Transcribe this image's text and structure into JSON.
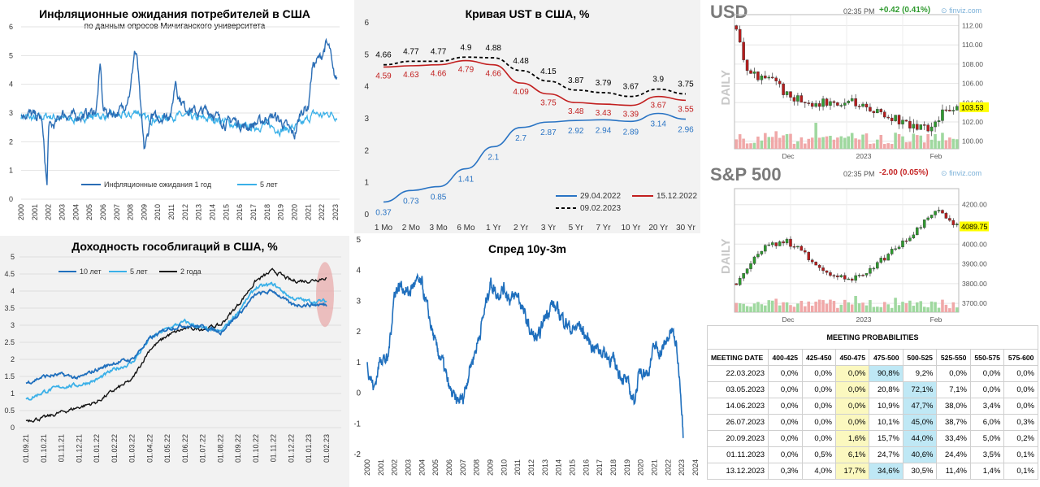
{
  "inflation": {
    "title": "Инфляционные ожидания потребителей в США",
    "subtitle": "по данным опросов Мичиганского университета",
    "y_ticks": [
      "0",
      "1",
      "2",
      "3",
      "4",
      "5",
      "6"
    ],
    "x_ticks": [
      "2000",
      "2001",
      "2002",
      "2003",
      "2004",
      "2005",
      "2006",
      "2007",
      "2008",
      "2009",
      "2010",
      "2011",
      "2012",
      "2013",
      "2014",
      "2015",
      "2016",
      "2017",
      "2018",
      "2019",
      "2020",
      "2021",
      "2022",
      "2023"
    ],
    "legend": [
      "Инфляционные ожидания 1 год",
      "5 лет"
    ],
    "colors": {
      "one_year": "#2a6db5",
      "five_year": "#3ab0e8"
    }
  },
  "ust": {
    "title": "Кривая UST в США, %",
    "y_ticks": [
      "0",
      "1",
      "2",
      "3",
      "4",
      "5",
      "6"
    ],
    "categories": [
      "1 Mo",
      "2 Mo",
      "3 Mo",
      "6 Mo",
      "1 Yr",
      "2 Yr",
      "3 Yr",
      "5 Yr",
      "7 Yr",
      "10 Yr",
      "20 Yr",
      "30 Yr"
    ],
    "legend": [
      "29.04.2022",
      "15.12.2022",
      "09.02.2023"
    ]
  },
  "bonds": {
    "title": "Доходность гособлигаций в США, %",
    "y_ticks": [
      "0",
      "0.5",
      "1",
      "1.5",
      "2",
      "2.5",
      "3",
      "3.5",
      "4",
      "4.5",
      "5"
    ],
    "x_ticks": [
      "01.09.21",
      "01.10.21",
      "01.11.21",
      "01.12.21",
      "01.01.22",
      "01.02.22",
      "01.03.22",
      "01.04.22",
      "01.05.22",
      "01.06.22",
      "01.07.22",
      "01.08.22",
      "01.09.22",
      "01.10.22",
      "01.11.22",
      "01.12.22",
      "01.01.23",
      "01.02.23"
    ],
    "legend": [
      "10 лет",
      "5 лет",
      "2 года"
    ]
  },
  "spread": {
    "title": "Спред 10y-3m",
    "y_ticks": [
      "-2",
      "-1",
      "0",
      "1",
      "2",
      "3",
      "4",
      "5"
    ],
    "x_ticks": [
      "2000",
      "2001",
      "2002",
      "2003",
      "2004",
      "2005",
      "2006",
      "2007",
      "2008",
      "2009",
      "2010",
      "2011",
      "2012",
      "2013",
      "2014",
      "2015",
      "2016",
      "2017",
      "2018",
      "2019",
      "2020",
      "2021",
      "2022",
      "2023",
      "2024"
    ]
  },
  "usd": {
    "ticker": "USD",
    "time": "02:35 PM",
    "change": "+0.42 (0.41%)",
    "source": "finviz.com",
    "period": "DAILY",
    "price_ticks": [
      "112.00",
      "110.00",
      "108.00",
      "106.00",
      "104.00",
      "102.00",
      "100.00"
    ],
    "last_price": "103.53",
    "x_labels": [
      "Dec",
      "2023",
      "Feb"
    ]
  },
  "sp500": {
    "ticker": "S&P 500",
    "time": "02:35 PM",
    "change": "-2.00 (0.05%)",
    "source": "finviz.com",
    "period": "DAILY",
    "price_ticks": [
      "4200.00",
      "4100.00",
      "4000.00",
      "3900.00",
      "3800.00",
      "3700.00"
    ],
    "last_price": "4089.75",
    "x_labels": [
      "Dec",
      "2023",
      "Feb"
    ]
  },
  "meeting": {
    "title": "MEETING PROBABILITIES",
    "headers": [
      "MEETING DATE",
      "400-425",
      "425-450",
      "450-475",
      "475-500",
      "500-525",
      "525-550",
      "550-575",
      "575-600"
    ],
    "rows": [
      [
        "22.03.2023",
        "0,0%",
        "0,0%",
        "0,0%",
        "90,8%",
        "9,2%",
        "0,0%",
        "0,0%",
        "0,0%"
      ],
      [
        "03.05.2023",
        "0,0%",
        "0,0%",
        "0,0%",
        "20,8%",
        "72,1%",
        "7,1%",
        "0,0%",
        "0,0%"
      ],
      [
        "14.06.2023",
        "0,0%",
        "0,0%",
        "0,0%",
        "10,9%",
        "47,7%",
        "38,0%",
        "3,4%",
        "0,0%"
      ],
      [
        "26.07.2023",
        "0,0%",
        "0,0%",
        "0,0%",
        "10,1%",
        "45,0%",
        "38,7%",
        "6,0%",
        "0,3%"
      ],
      [
        "20.09.2023",
        "0,0%",
        "0,0%",
        "1,6%",
        "15,7%",
        "44,0%",
        "33,4%",
        "5,0%",
        "0,2%"
      ],
      [
        "01.11.2023",
        "0,0%",
        "0,5%",
        "6,1%",
        "24,7%",
        "40,6%",
        "24,4%",
        "3,5%",
        "0,1%"
      ],
      [
        "13.12.2023",
        "0,3%",
        "4,0%",
        "17,7%",
        "34,6%",
        "30,5%",
        "11,4%",
        "1,4%",
        "0,1%"
      ]
    ]
  },
  "chart_data": [
    {
      "type": "line",
      "title": "Инфляционные ожидания потребителей в США",
      "subtitle": "по данным опросов Мичиганского университета",
      "ylim": [
        0,
        6
      ],
      "xlim": [
        2000,
        2023
      ],
      "series": [
        {
          "name": "Инфляционные ожидания 1 год",
          "x": [
            2000,
            2000.5,
            2001,
            2001.5,
            2001.9,
            2002,
            2002.5,
            2003,
            2003.5,
            2004,
            2004.5,
            2005,
            2005.5,
            2005.8,
            2006,
            2006.5,
            2007,
            2007.5,
            2008,
            2008.3,
            2008.5,
            2008.8,
            2009,
            2009.3,
            2009.5,
            2010,
            2010.5,
            2011,
            2011.3,
            2011.5,
            2012,
            2012.5,
            2013,
            2013.5,
            2014,
            2014.5,
            2015,
            2015.5,
            2016,
            2016.5,
            2017,
            2017.5,
            2018,
            2018.5,
            2019,
            2019.5,
            2020,
            2020.5,
            2021,
            2021.3,
            2021.6,
            2022,
            2022.3,
            2022.6,
            2022.8,
            2023
          ],
          "values": [
            2.9,
            3.0,
            2.9,
            2.8,
            0.4,
            2.5,
            2.6,
            3.0,
            2.9,
            2.9,
            2.9,
            3.0,
            3.1,
            4.7,
            3.1,
            3.0,
            3.0,
            3.2,
            3.8,
            5.2,
            4.8,
            2.8,
            1.7,
            2.3,
            2.9,
            2.8,
            2.9,
            3.0,
            4.2,
            3.6,
            3.2,
            3.1,
            3.0,
            3.1,
            3.0,
            2.8,
            2.6,
            2.8,
            2.6,
            2.5,
            2.6,
            2.7,
            2.8,
            2.9,
            2.7,
            2.5,
            2.2,
            3.1,
            3.2,
            4.6,
            4.8,
            5.0,
            5.4,
            5.2,
            4.4,
            4.2
          ]
        },
        {
          "name": "5 лет",
          "x": [
            2000,
            2001,
            2002,
            2003,
            2004,
            2005,
            2006,
            2007,
            2008,
            2008.5,
            2009,
            2010,
            2011,
            2012,
            2013,
            2014,
            2015,
            2016,
            2017,
            2018,
            2019,
            2020,
            2020.5,
            2021,
            2021.5,
            2022,
            2022.5,
            2023
          ],
          "values": [
            2.9,
            2.8,
            2.9,
            2.8,
            2.8,
            2.9,
            2.9,
            2.9,
            2.9,
            3.1,
            2.8,
            2.8,
            2.9,
            2.9,
            2.8,
            2.8,
            2.7,
            2.5,
            2.5,
            2.6,
            2.4,
            2.5,
            2.6,
            2.8,
            3.0,
            2.9,
            3.0,
            2.9
          ]
        }
      ]
    },
    {
      "type": "line",
      "title": "Кривая UST в США, %",
      "ylim": [
        0,
        6
      ],
      "categories": [
        "1 Mo",
        "2 Mo",
        "3 Mo",
        "6 Mo",
        "1 Yr",
        "2 Yr",
        "3 Yr",
        "5 Yr",
        "7 Yr",
        "10 Yr",
        "20 Yr",
        "30 Yr"
      ],
      "series": [
        {
          "name": "29.04.2022",
          "values": [
            0.37,
            0.73,
            0.85,
            1.41,
            2.1,
            2.7,
            2.87,
            2.92,
            2.94,
            2.89,
            3.14,
            2.96
          ]
        },
        {
          "name": "15.12.2022",
          "values": [
            4.59,
            4.63,
            4.66,
            4.79,
            4.66,
            4.09,
            3.75,
            3.48,
            3.43,
            3.39,
            3.67,
            3.55
          ]
        },
        {
          "name": "09.02.2023",
          "values": [
            4.66,
            4.77,
            4.77,
            4.9,
            4.88,
            4.48,
            4.15,
            3.87,
            3.79,
            3.67,
            3.9,
            3.75
          ]
        }
      ]
    },
    {
      "type": "line",
      "title": "Доходность гособлигаций в США, %",
      "ylim": [
        0,
        5
      ],
      "x": [
        "01.09.21",
        "01.10.21",
        "01.11.21",
        "01.12.21",
        "01.01.22",
        "01.02.22",
        "01.03.22",
        "01.04.22",
        "01.05.22",
        "01.06.22",
        "01.07.22",
        "01.08.22",
        "01.09.22",
        "01.10.22",
        "01.11.22",
        "01.12.22",
        "01.01.23",
        "01.02.23"
      ],
      "series": [
        {
          "name": "10 лет",
          "values": [
            1.3,
            1.5,
            1.55,
            1.45,
            1.7,
            1.9,
            2.0,
            2.6,
            2.9,
            3.0,
            2.95,
            2.8,
            3.3,
            3.9,
            4.0,
            3.6,
            3.6,
            3.6
          ]
        },
        {
          "name": "5 лет",
          "values": [
            0.8,
            1.05,
            1.2,
            1.25,
            1.4,
            1.7,
            1.9,
            2.6,
            2.9,
            3.1,
            2.9,
            2.8,
            3.4,
            4.1,
            4.2,
            3.8,
            3.7,
            3.7
          ]
        },
        {
          "name": "2 года",
          "values": [
            0.22,
            0.28,
            0.45,
            0.6,
            0.75,
            1.1,
            1.4,
            2.3,
            2.7,
            2.9,
            2.9,
            3.0,
            3.6,
            4.3,
            4.6,
            4.3,
            4.3,
            4.4
          ]
        }
      ]
    },
    {
      "type": "line",
      "title": "Спред 10y-3m",
      "ylim": [
        -2,
        5
      ],
      "xlim": [
        2000,
        2024
      ],
      "series": [
        {
          "name": "Спред 10y-3m",
          "x": [
            2000,
            2000.5,
            2001,
            2001.5,
            2002,
            2002.5,
            2003,
            2003.5,
            2004,
            2004.5,
            2005,
            2005.5,
            2006,
            2006.5,
            2007,
            2007.5,
            2008,
            2008.5,
            2009,
            2009.5,
            2010,
            2010.5,
            2011,
            2011.5,
            2012,
            2012.5,
            2013,
            2013.5,
            2014,
            2014.5,
            2015,
            2015.5,
            2016,
            2016.5,
            2017,
            2017.5,
            2018,
            2018.5,
            2019,
            2019.5,
            2020,
            2020.5,
            2021,
            2021.5,
            2022,
            2022.3,
            2022.6,
            2022.9,
            2023.1
          ],
          "values": [
            0.9,
            0.1,
            1.2,
            1.0,
            3.3,
            3.5,
            3.2,
            3.6,
            3.5,
            2.5,
            1.5,
            1.0,
            0.1,
            -0.3,
            -0.2,
            0.8,
            1.5,
            2.5,
            3.6,
            3.2,
            3.4,
            3.0,
            3.2,
            2.5,
            1.9,
            1.7,
            2.5,
            2.9,
            2.6,
            2.3,
            2.0,
            2.2,
            1.8,
            1.5,
            1.4,
            1.2,
            1.0,
            0.6,
            0.3,
            -0.3,
            0.8,
            0.6,
            1.5,
            1.3,
            1.8,
            2.0,
            1.5,
            0.2,
            -1.3
          ]
        }
      ]
    }
  ]
}
